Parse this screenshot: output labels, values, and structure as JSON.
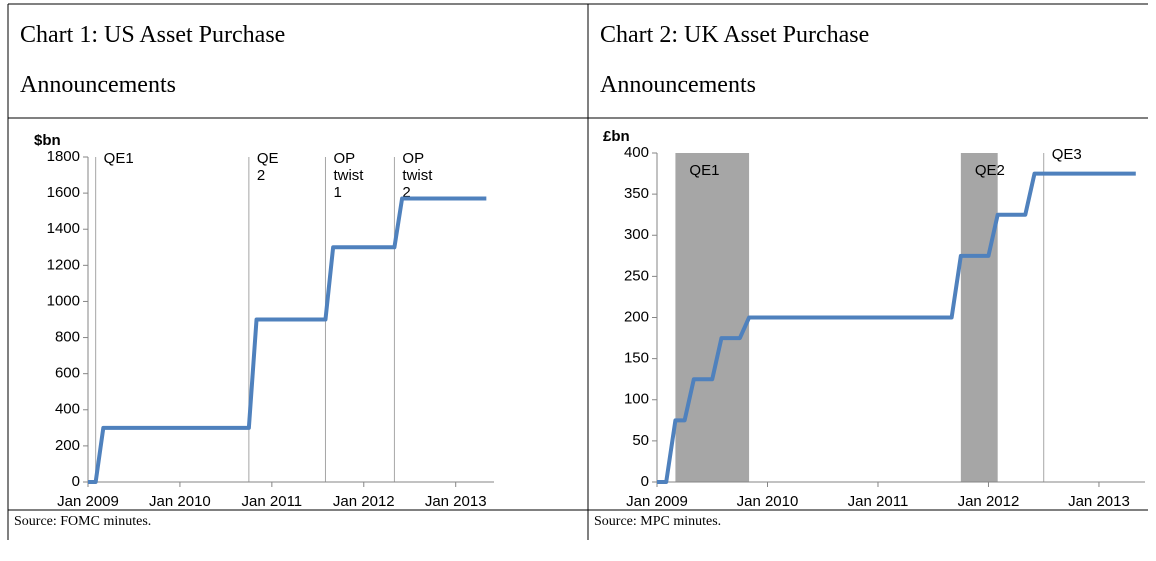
{
  "chart_data": [
    {
      "type": "line",
      "title": "Chart 1: US Asset Purchase Announcements",
      "source": "Source: FOMC minutes.",
      "ylabel": "$bn",
      "x": [
        "2009-01",
        "2009-02",
        "2009-03",
        "2010-10",
        "2010-11",
        "2011-08",
        "2011-09",
        "2012-05",
        "2012-06",
        "2013-05"
      ],
      "series": [
        {
          "color": "#4f81bd",
          "values": [
            0,
            0,
            300,
            300,
            900,
            900,
            1300,
            1300,
            1570,
            1570
          ]
        }
      ],
      "xlim": [
        "2009-01",
        "2013-06"
      ],
      "xticks": [
        {
          "value": "2009-01",
          "label": "Jan 2009"
        },
        {
          "value": "2010-01",
          "label": "Jan 2010"
        },
        {
          "value": "2011-01",
          "label": "Jan 2011"
        },
        {
          "value": "2012-01",
          "label": "Jan 2012"
        },
        {
          "value": "2013-01",
          "label": "Jan 2013"
        }
      ],
      "ylim": [
        0,
        1800
      ],
      "yticks": [
        0,
        200,
        400,
        600,
        800,
        1000,
        1200,
        1400,
        1600,
        1800
      ],
      "annotations": [
        {
          "type": "line",
          "x": "2009-02",
          "label": "QE1"
        },
        {
          "type": "line",
          "x": "2010-10",
          "label": "QE 2"
        },
        {
          "type": "line",
          "x": "2011-08",
          "label": "OP twist 1"
        },
        {
          "type": "line",
          "x": "2012-05",
          "label": "OP twist 2"
        }
      ]
    },
    {
      "type": "line",
      "title": "Chart 2: UK Asset Purchase Announcements",
      "source": "Source: MPC minutes.",
      "ylabel": "£bn",
      "x": [
        "2009-01",
        "2009-02",
        "2009-03",
        "2009-04",
        "2009-05",
        "2009-07",
        "2009-08",
        "2009-10",
        "2009-11",
        "2011-09",
        "2011-10",
        "2012-01",
        "2012-02",
        "2012-05",
        "2012-06",
        "2013-05"
      ],
      "series": [
        {
          "color": "#4f81bd",
          "values": [
            0,
            0,
            75,
            75,
            125,
            125,
            175,
            175,
            200,
            200,
            275,
            275,
            325,
            325,
            375,
            375
          ]
        }
      ],
      "xlim": [
        "2009-01",
        "2013-06"
      ],
      "xticks": [
        {
          "value": "2009-01",
          "label": "Jan 2009"
        },
        {
          "value": "2010-01",
          "label": "Jan 2010"
        },
        {
          "value": "2011-01",
          "label": "Jan 2011"
        },
        {
          "value": "2012-01",
          "label": "Jan 2012"
        },
        {
          "value": "2013-01",
          "label": "Jan 2013"
        }
      ],
      "ylim": [
        0,
        400
      ],
      "yticks": [
        0,
        50,
        100,
        150,
        200,
        250,
        300,
        350,
        400
      ],
      "annotations": [
        {
          "type": "span",
          "x": [
            "2009-03",
            "2009-11"
          ],
          "label": "QE1"
        },
        {
          "type": "span",
          "x": [
            "2011-10",
            "2012-02"
          ],
          "label": "QE2"
        },
        {
          "type": "line",
          "x": "2012-07",
          "label": "QE3"
        }
      ]
    }
  ]
}
